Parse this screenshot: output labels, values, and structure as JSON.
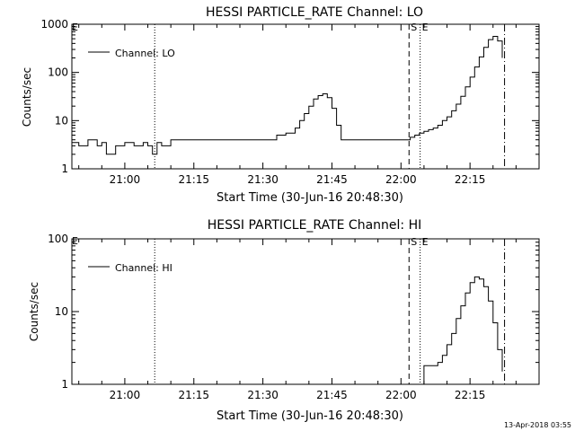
{
  "chart_data": [
    {
      "type": "line",
      "title": "HESSI PARTICLE_RATE Channel: LO",
      "xlabel": "Start Time (30-Jun-16 20:48:30)",
      "ylabel": "Counts/sec",
      "yscale": "log",
      "ylim": [
        1,
        1000
      ],
      "xlim": [
        "20:48:30",
        "22:30:00"
      ],
      "x_ticks": [
        "21:00",
        "21:15",
        "21:30",
        "21:45",
        "22:00",
        "22:15"
      ],
      "y_ticks": [
        "1",
        "10",
        "100",
        "1000"
      ],
      "legend": {
        "label": "Channel: LO",
        "placement": "top-left"
      },
      "markers": [
        {
          "type": "dotted",
          "time": "21:06:30",
          "label": ""
        },
        {
          "type": "dashed",
          "time": "22:01:45",
          "label": "S"
        },
        {
          "type": "dotted",
          "time": "22:04:10",
          "label": "E"
        },
        {
          "type": "dashdot",
          "time": "22:22:30",
          "label": ""
        }
      ],
      "corner_label": "E",
      "series": [
        {
          "x": [
            "20:48:30",
            "20:50",
            "20:52",
            "20:54",
            "20:55",
            "20:56",
            "20:58",
            "21:00",
            "21:02",
            "21:04",
            "21:05",
            "21:06",
            "21:07",
            "21:08",
            "21:10",
            "21:15",
            "21:20",
            "21:25",
            "21:30",
            "21:33",
            "21:35",
            "21:37",
            "21:38",
            "21:39",
            "21:40",
            "21:41",
            "21:42",
            "21:43",
            "21:44",
            "21:45",
            "21:46",
            "21:47",
            "21:48",
            "21:50",
            "21:55",
            "22:00",
            "22:01",
            "22:02",
            "22:03",
            "22:04",
            "22:05",
            "22:06",
            "22:07",
            "22:08",
            "22:09",
            "22:10",
            "22:11",
            "22:12",
            "22:13",
            "22:14",
            "22:15",
            "22:16",
            "22:17",
            "22:18",
            "22:19",
            "22:20",
            "22:21",
            "22:22"
          ],
          "values": [
            3.5,
            3,
            4,
            3,
            3.5,
            2,
            3,
            3.5,
            3,
            3.5,
            3,
            2,
            3.5,
            3,
            4,
            4,
            4,
            4,
            4,
            5,
            5.5,
            7,
            10,
            14,
            20,
            28,
            33,
            36,
            30,
            18,
            8,
            4,
            4,
            4,
            4,
            4,
            4,
            4.5,
            5,
            5.5,
            6,
            6.5,
            7,
            8,
            10,
            12,
            16,
            22,
            32,
            50,
            80,
            130,
            210,
            330,
            480,
            560,
            450,
            200
          ]
        }
      ]
    },
    {
      "type": "line",
      "title": "HESSI PARTICLE_RATE Channel: HI",
      "xlabel": "Start Time (30-Jun-16 20:48:30)",
      "ylabel": "Counts/sec",
      "yscale": "log",
      "ylim": [
        1,
        100
      ],
      "xlim": [
        "20:48:30",
        "22:30:00"
      ],
      "x_ticks": [
        "21:00",
        "21:15",
        "21:30",
        "21:45",
        "22:00",
        "22:15"
      ],
      "y_ticks": [
        "1",
        "10",
        "100"
      ],
      "legend": {
        "label": "Channel: HI",
        "placement": "top-left"
      },
      "markers": [
        {
          "type": "dotted",
          "time": "21:06:30",
          "label": ""
        },
        {
          "type": "dashed",
          "time": "22:01:45",
          "label": "S"
        },
        {
          "type": "dotted",
          "time": "22:04:10",
          "label": "E"
        },
        {
          "type": "dashdot",
          "time": "22:22:30",
          "label": ""
        }
      ],
      "corner_label": "E",
      "series": [
        {
          "x": [
            "22:04:10",
            "22:05",
            "22:07",
            "22:08",
            "22:09",
            "22:10",
            "22:11",
            "22:12",
            "22:13",
            "22:14",
            "22:15",
            "22:16",
            "22:17",
            "22:18",
            "22:19",
            "22:20",
            "22:21",
            "22:22"
          ],
          "values": [
            1,
            1.8,
            1.8,
            2,
            2.5,
            3.5,
            5,
            8,
            12,
            18,
            25,
            30,
            28,
            22,
            14,
            7,
            3,
            1.5
          ]
        }
      ]
    }
  ],
  "footer": {
    "timestamp": "13-Apr-2018 03:55"
  }
}
